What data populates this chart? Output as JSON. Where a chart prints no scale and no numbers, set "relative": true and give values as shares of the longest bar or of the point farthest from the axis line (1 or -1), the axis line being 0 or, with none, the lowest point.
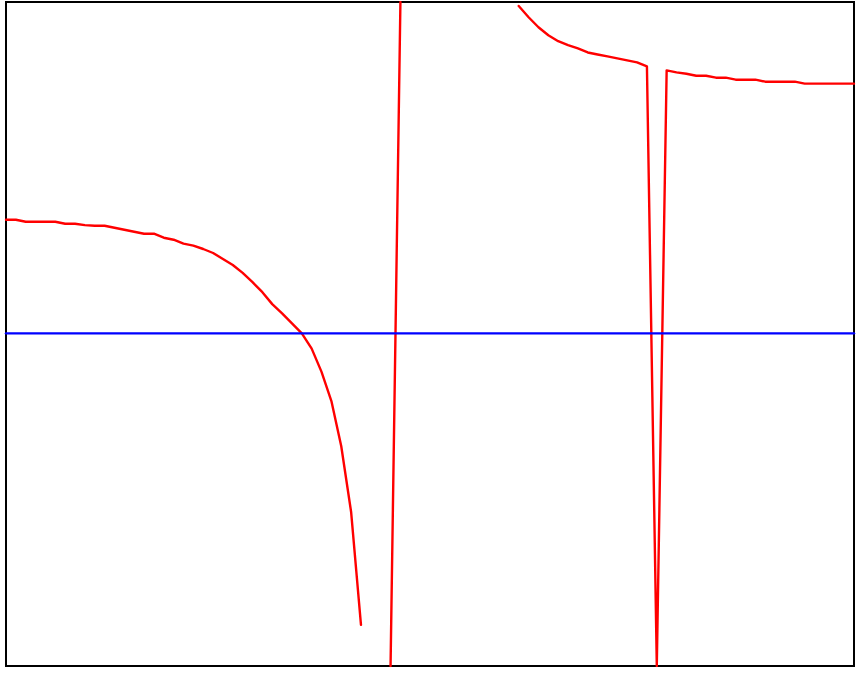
{
  "chart_data": {
    "type": "line",
    "relative": true,
    "grid": false,
    "line_style": "solid",
    "categories": [
      null,
      null,
      null,
      null,
      null,
      null,
      null,
      null,
      null,
      null,
      null,
      null,
      null,
      null,
      null,
      null,
      null,
      null,
      null,
      null,
      null,
      null,
      null,
      null,
      null,
      null,
      null,
      null,
      null,
      null,
      null,
      null,
      null,
      null,
      null,
      null,
      null,
      null,
      null,
      null,
      null,
      null,
      null,
      null,
      null,
      null,
      null,
      null,
      null,
      null,
      null,
      null,
      null,
      null,
      null,
      null,
      null,
      null,
      null,
      null,
      null,
      null,
      null,
      null,
      null,
      null,
      null,
      null,
      null,
      null,
      null,
      null,
      null,
      null,
      null,
      null,
      null,
      null,
      null,
      null,
      null,
      null,
      null,
      null,
      null,
      null,
      null
    ],
    "series": [
      {
        "color": "#ff0000",
        "values": [
          0.672,
          0.672,
          0.669,
          0.669,
          0.669,
          0.669,
          0.666,
          0.666,
          0.664,
          0.663,
          0.663,
          0.66,
          0.657,
          0.654,
          0.651,
          0.651,
          0.645,
          0.642,
          0.636,
          0.633,
          0.628,
          0.622,
          0.613,
          0.604,
          0.592,
          0.578,
          0.563,
          0.545,
          0.531,
          0.516,
          0.501,
          0.478,
          0.443,
          0.399,
          0.331,
          0.232,
          0.062,
          null,
          null,
          0,
          1,
          null,
          null,
          null,
          null,
          null,
          null,
          null,
          null,
          null,
          null,
          null,
          0.994,
          0.977,
          0.962,
          0.95,
          0.941,
          0.935,
          0.93,
          0.924,
          0.921,
          0.918,
          0.915,
          0.912,
          0.909,
          0.903,
          0,
          0.897,
          0.894,
          0.892,
          0.889,
          0.889,
          0.886,
          0.886,
          0.883,
          0.883,
          0.883,
          0.88,
          0.88,
          0.88,
          0.88,
          0.877,
          0.877,
          0.877,
          0.877,
          0.877,
          0.877
        ]
      },
      {
        "color": "#0000ff",
        "values": [
          0.501,
          0.501,
          0.501,
          0.501,
          0.501,
          0.501,
          0.501,
          0.501,
          0.501,
          0.501,
          0.501,
          0.501,
          0.501,
          0.501,
          0.501,
          0.501,
          0.501,
          0.501,
          0.501,
          0.501,
          0.501,
          0.501,
          0.501,
          0.501,
          0.501,
          0.501,
          0.501,
          0.501,
          0.501,
          0.501,
          0.501,
          0.501,
          0.501,
          0.501,
          0.501,
          0.501,
          0.501,
          0.501,
          0.501,
          0.501,
          0.501,
          0.501,
          0.501,
          0.501,
          0.501,
          0.501,
          0.501,
          0.501,
          0.501,
          0.501,
          0.501,
          0.501,
          0.501,
          0.501,
          0.501,
          0.501,
          0.501,
          0.501,
          0.501,
          0.501,
          0.501,
          0.501,
          0.501,
          0.501,
          0.501,
          0.501,
          0.501,
          0.501,
          0.501,
          0.501,
          0.501,
          0.501,
          0.501,
          0.501,
          0.501,
          0.501,
          0.501,
          0.501,
          0.501,
          0.501,
          0.501,
          0.501,
          0.501,
          0.501,
          0.501,
          0.501,
          0.501
        ]
      }
    ]
  }
}
